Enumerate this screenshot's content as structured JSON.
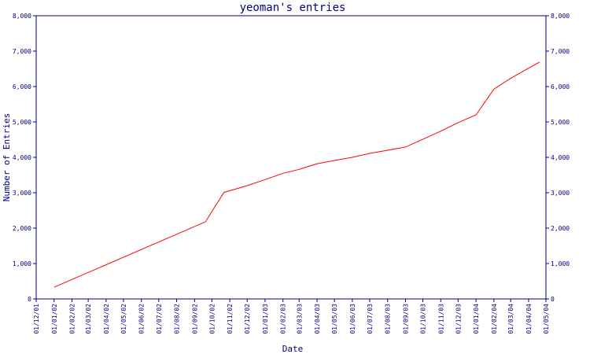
{
  "chart_data": {
    "type": "line",
    "title": "yeoman's entries",
    "xlabel": "Date",
    "ylabel": "Number of Entries",
    "ylim": [
      0,
      8000
    ],
    "yticks": [
      0,
      1000,
      2000,
      3000,
      4000,
      5000,
      6000,
      7000,
      8000
    ],
    "ytick_labels": [
      "0",
      "1,000",
      "2,000",
      "3,000",
      "4,000",
      "5,000",
      "6,000",
      "7,000",
      "8,000"
    ],
    "xlim": [
      "2001-12-01",
      "2004-05-01"
    ],
    "xticks": [
      "2001-12-01",
      "2002-01-01",
      "2002-02-01",
      "2002-03-01",
      "2002-04-01",
      "2002-05-01",
      "2002-06-01",
      "2002-07-01",
      "2002-08-01",
      "2002-09-01",
      "2002-10-01",
      "2002-11-01",
      "2002-12-01",
      "2003-01-01",
      "2003-02-01",
      "2003-03-01",
      "2003-04-01",
      "2003-05-01",
      "2003-06-01",
      "2003-07-01",
      "2003-08-01",
      "2003-09-01",
      "2003-10-01",
      "2003-11-01",
      "2003-12-01",
      "2004-01-01",
      "2004-02-01",
      "2004-03-01",
      "2004-04-01",
      "2004-05-01"
    ],
    "xtick_labels": [
      "01/12/01",
      "01/01/02",
      "01/02/02",
      "01/03/02",
      "01/04/02",
      "01/05/02",
      "01/06/02",
      "01/07/02",
      "01/08/02",
      "01/09/02",
      "01/10/02",
      "01/11/02",
      "01/12/02",
      "01/01/03",
      "01/02/03",
      "01/03/03",
      "01/04/03",
      "01/05/03",
      "01/06/03",
      "01/07/03",
      "01/08/03",
      "01/09/03",
      "01/10/03",
      "01/11/03",
      "01/12/03",
      "01/01/04",
      "01/02/04",
      "01/03/04",
      "01/04/04",
      "01/05/04"
    ],
    "series": [
      {
        "color": "#ff0000",
        "points": [
          [
            "2002-01-01",
            330
          ],
          [
            "2002-09-20",
            2180
          ],
          [
            "2002-10-06",
            2600
          ],
          [
            "2002-10-22",
            3010
          ],
          [
            "2002-12-01",
            3200
          ],
          [
            "2003-01-01",
            3370
          ],
          [
            "2003-02-01",
            3550
          ],
          [
            "2003-03-01",
            3660
          ],
          [
            "2003-04-01",
            3820
          ],
          [
            "2003-05-01",
            3910
          ],
          [
            "2003-06-01",
            4000
          ],
          [
            "2003-07-01",
            4110
          ],
          [
            "2003-08-01",
            4200
          ],
          [
            "2003-09-01",
            4290
          ],
          [
            "2003-10-01",
            4510
          ],
          [
            "2003-11-01",
            4740
          ],
          [
            "2003-12-01",
            4980
          ],
          [
            "2004-01-01",
            5200
          ],
          [
            "2004-02-01",
            5930
          ],
          [
            "2004-03-01",
            6230
          ],
          [
            "2004-04-01",
            6520
          ],
          [
            "2004-04-20",
            6690
          ]
        ]
      }
    ],
    "grid": false,
    "legend": "none",
    "colors": {
      "frame": "#000080",
      "text": "#000080",
      "line": "#ff0000",
      "background": "#ffffff"
    }
  }
}
